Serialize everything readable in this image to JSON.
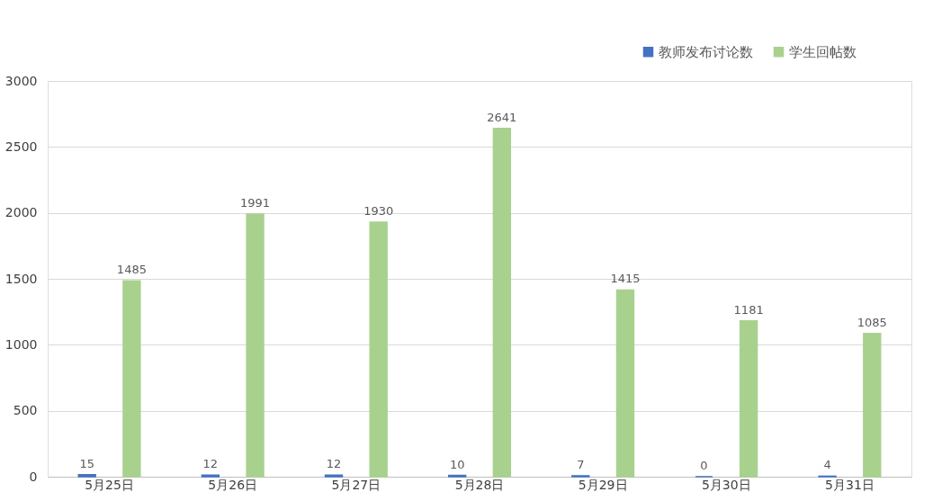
{
  "chart_data": {
    "type": "bar",
    "categories": [
      "5月25日",
      "5月26日",
      "5月27日",
      "5月28日",
      "5月29日",
      "5月30日",
      "5月31日"
    ],
    "series": [
      {
        "name": "教师发布讨论数",
        "color": "#4472c4",
        "values": [
          15,
          12,
          12,
          10,
          7,
          0,
          4
        ]
      },
      {
        "name": "学生回帖数",
        "color": "#a9d18e",
        "values": [
          1485,
          1991,
          1930,
          2641,
          1415,
          1181,
          1085
        ]
      }
    ],
    "ylim": [
      0,
      3000
    ],
    "yticks": [
      0,
      500,
      1000,
      1500,
      2000,
      2500,
      3000
    ],
    "grid": "y",
    "legend": "top right",
    "data_labels": true
  }
}
